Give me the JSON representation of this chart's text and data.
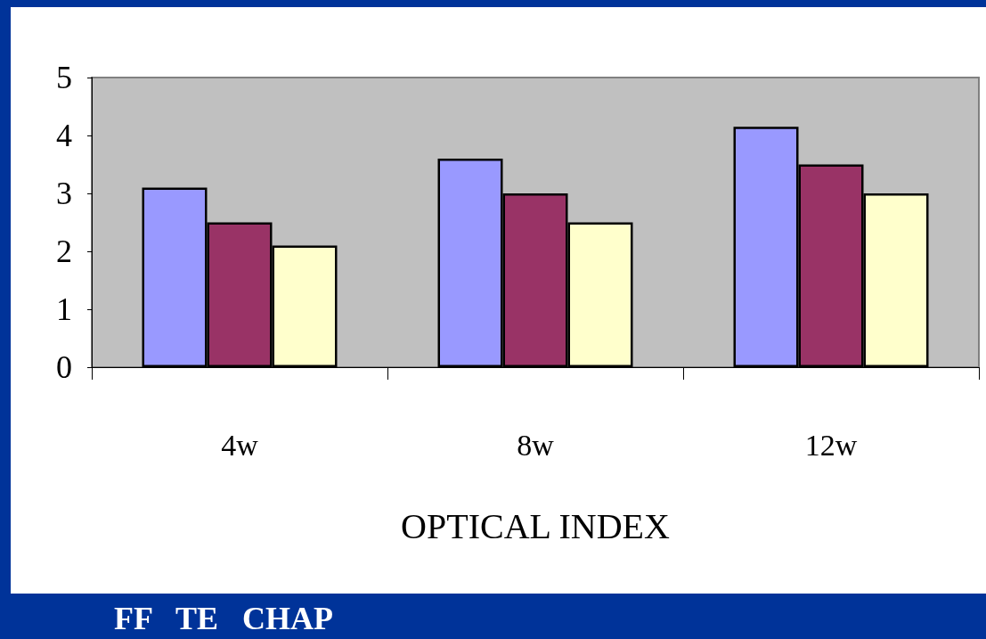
{
  "chart_data": {
    "type": "bar",
    "xlabel": "OPTICAL INDEX",
    "categories": [
      "4w",
      "8w",
      "12w"
    ],
    "series": [
      {
        "color": "#9999ff",
        "values": [
          3.1,
          3.6,
          4.15
        ]
      },
      {
        "color": "#993366",
        "values": [
          2.5,
          3.0,
          3.5
        ]
      },
      {
        "color": "#ffffcc",
        "values": [
          2.1,
          2.5,
          3.0
        ]
      }
    ],
    "ylim": [
      0,
      5
    ],
    "yticks": [
      0,
      1,
      2,
      3,
      4,
      5
    ],
    "grid": false,
    "annotations": [
      "FF   TE   CHAP"
    ]
  }
}
